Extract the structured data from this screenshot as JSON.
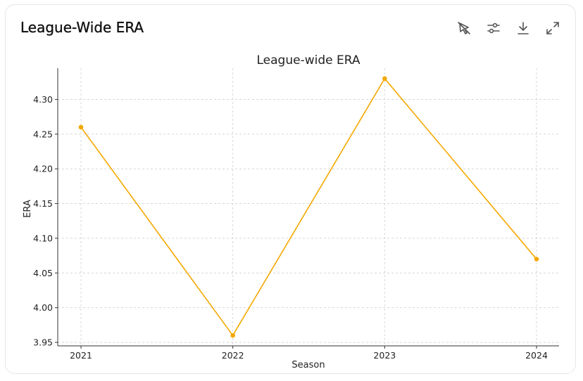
{
  "card": {
    "title": "League-Wide ERA"
  },
  "toolbar": {
    "buttons": [
      {
        "name": "interactive-toggle-button",
        "icon": "pointer-off-icon"
      },
      {
        "name": "chart-settings-button",
        "icon": "sliders-icon"
      },
      {
        "name": "download-button",
        "icon": "download-icon"
      },
      {
        "name": "expand-button",
        "icon": "expand-icon"
      }
    ]
  },
  "chart_data": {
    "type": "line",
    "title": "League-wide ERA",
    "xlabel": "Season",
    "ylabel": "ERA",
    "categories": [
      "2021",
      "2022",
      "2023",
      "2024"
    ],
    "series": [
      {
        "values": [
          4.26,
          3.96,
          4.33,
          4.07
        ],
        "color": "#f5a800"
      }
    ],
    "yticks": [
      "3.95",
      "4.00",
      "4.05",
      "4.10",
      "4.15",
      "4.20",
      "4.25",
      "4.30"
    ],
    "ylim": [
      3.945,
      4.345
    ],
    "grid": true,
    "marker": "circle"
  }
}
